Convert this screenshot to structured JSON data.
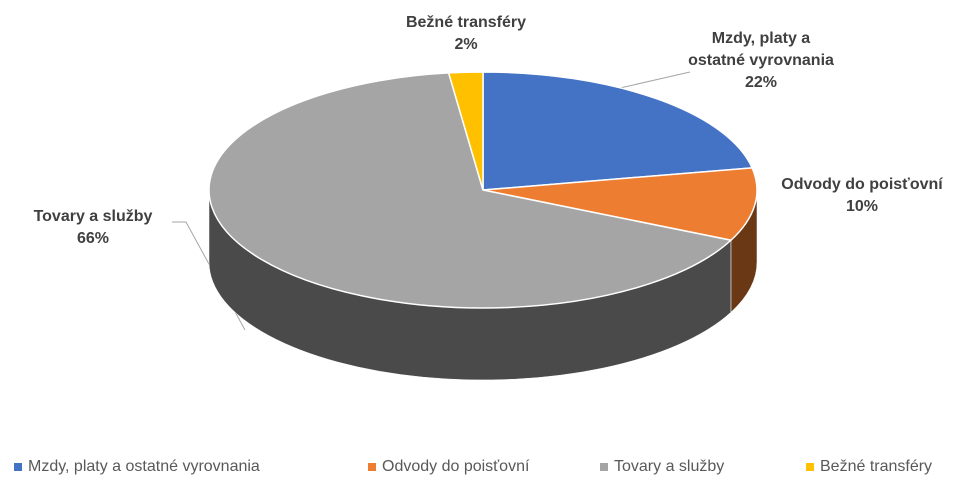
{
  "chart_data": {
    "type": "pie3d",
    "categories": [
      "Mzdy, platy a ostatné vyrovnania",
      "Odvody do poisťovní",
      "Tovary a služby",
      "Bežné transféry"
    ],
    "values": [
      22,
      10,
      66,
      2
    ],
    "value_labels": [
      "22%",
      "10%",
      "66%",
      "2%"
    ],
    "colors": [
      "#4472c4",
      "#ed7d31",
      "#a5a5a5",
      "#ffc000"
    ],
    "legend": "bottom"
  }
}
